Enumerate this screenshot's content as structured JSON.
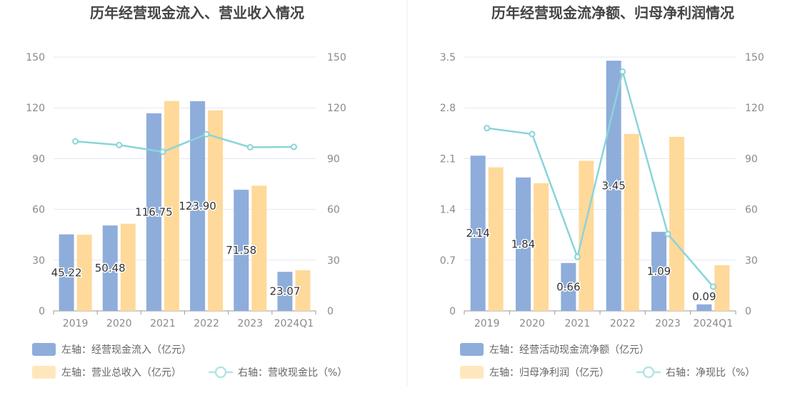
{
  "colors": {
    "bar_primary": "#8eadda",
    "bar_secondary": "#ffd99a",
    "line": "#8ad4d9",
    "grid": "#e3e7f3",
    "axis": "#999999",
    "divider": "#ececec"
  },
  "chart_data": [
    {
      "type": "bar",
      "title": "历年经营现金流入、营业收入情况",
      "categories": [
        "2019",
        "2020",
        "2021",
        "2022",
        "2023",
        "2024Q1"
      ],
      "left_axis": {
        "ylim": [
          0,
          150
        ],
        "ticks": [
          "0",
          "30",
          "60",
          "90",
          "120",
          "150"
        ]
      },
      "right_axis": {
        "ylim": [
          0,
          150
        ],
        "ticks": [
          "0",
          "30",
          "60",
          "90",
          "120",
          "150"
        ]
      },
      "series": [
        {
          "name": "左轴：经营现金流入（亿元）",
          "kind": "bar",
          "axis": "left",
          "values": [
            45.22,
            50.48,
            116.75,
            123.9,
            71.58,
            23.07
          ],
          "labels": [
            "45.22",
            "50.48",
            "116.75",
            "123.90",
            "71.58",
            "23.07"
          ]
        },
        {
          "name": "左轴：营业总收入（亿元）",
          "kind": "bar",
          "axis": "left",
          "values": [
            45.0,
            51.5,
            124.0,
            118.5,
            74.0,
            24.0
          ]
        },
        {
          "name": "右轴：营收现金比（%）",
          "kind": "line",
          "axis": "right",
          "values": [
            100.2,
            98.0,
            94.0,
            104.4,
            96.7,
            96.9
          ]
        }
      ],
      "legend": [
        "左轴：经营现金流入（亿元）",
        "左轴：营业总收入（亿元）",
        "右轴：营收现金比（%）"
      ]
    },
    {
      "type": "bar",
      "title": "历年经营现金流净额、归母净利润情况",
      "categories": [
        "2019",
        "2020",
        "2021",
        "2022",
        "2023",
        "2024Q1"
      ],
      "left_axis": {
        "ylim": [
          0,
          3.5
        ],
        "ticks": [
          "0",
          "0.7",
          "1.4",
          "2.1",
          "2.8",
          "3.5"
        ]
      },
      "right_axis": {
        "ylim": [
          0,
          150
        ],
        "ticks": [
          "0",
          "30",
          "60",
          "90",
          "120",
          "150"
        ]
      },
      "series": [
        {
          "name": "左轴：经营活动现金流净额（亿元）",
          "kind": "bar",
          "axis": "left",
          "values": [
            2.14,
            1.84,
            0.66,
            3.45,
            1.09,
            0.09
          ],
          "labels": [
            "2.14",
            "1.84",
            "0.66",
            "3.45",
            "1.09",
            "0.09"
          ]
        },
        {
          "name": "左轴：归母净利润（亿元）",
          "kind": "bar",
          "axis": "left",
          "values": [
            1.98,
            1.76,
            2.07,
            2.44,
            2.4,
            0.63
          ]
        },
        {
          "name": "右轴：净现比（%）",
          "kind": "line",
          "axis": "right",
          "values": [
            108.0,
            104.5,
            31.9,
            141.4,
            45.4,
            14.3
          ]
        }
      ],
      "legend": [
        "左轴：经营活动现金流净额（亿元）",
        "左轴：归母净利润（亿元）",
        "右轴：净现比（%）"
      ]
    }
  ]
}
